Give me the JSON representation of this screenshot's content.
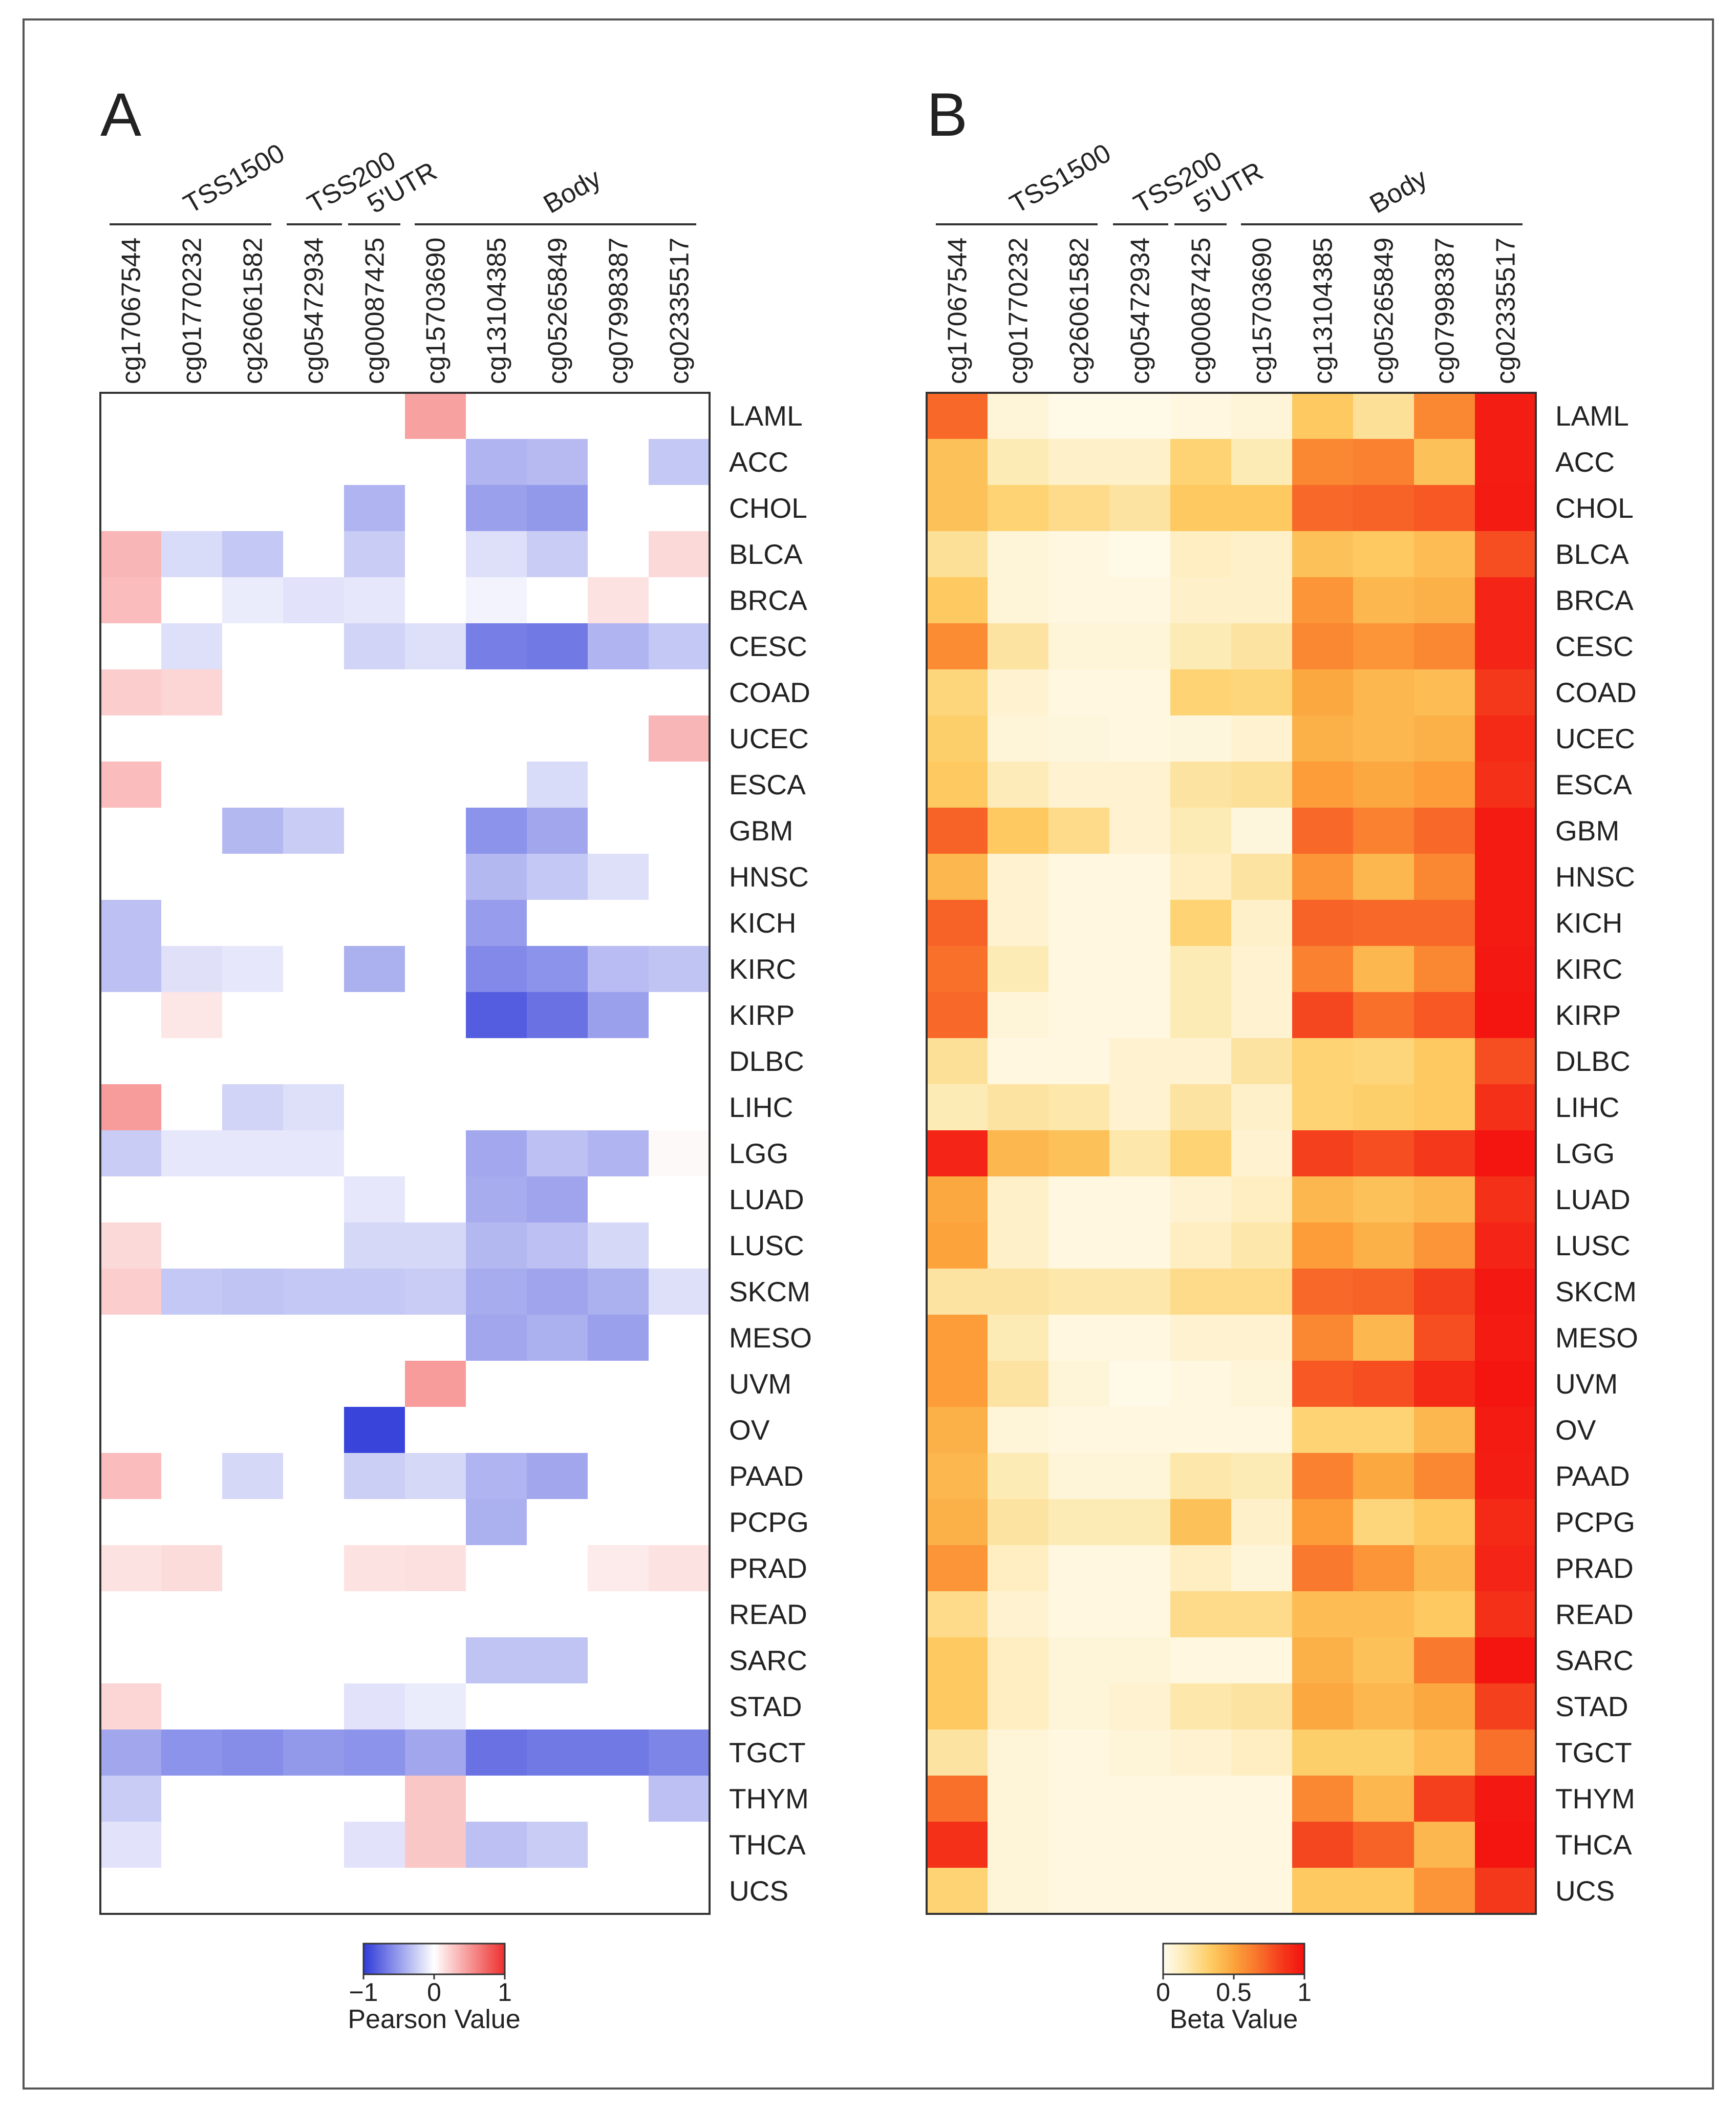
{
  "chart_data": [
    {
      "panel": "A",
      "type": "heatmap",
      "value_name": "Pearson Value",
      "colorbar": {
        "min": -1,
        "max": 1,
        "ticks": [
          "−1",
          "0",
          "1"
        ],
        "label": "Pearson Value",
        "colors": {
          "low": "#2e3ad8",
          "mid": "#ffffff",
          "high": "#ee2e2e"
        }
      },
      "group_headers": [
        "TSS1500",
        "TSS200",
        "5'UTR",
        "Body"
      ],
      "groups": [
        {
          "name": "TSS1500",
          "start": 0,
          "end": 2
        },
        {
          "name": "TSS200",
          "start": 3,
          "end": 3
        },
        {
          "name": "5'UTR",
          "start": 4,
          "end": 4
        },
        {
          "name": "Body",
          "start": 5,
          "end": 9
        }
      ],
      "columns": [
        "cg17067544",
        "cg01770232",
        "cg26061582",
        "cg05472934",
        "cg00087425",
        "cg15703690",
        "cg13104385",
        "cg05265849",
        "cg07998387",
        "cg02335517"
      ],
      "rows": [
        "LAML",
        "ACC",
        "CHOL",
        "BLCA",
        "BRCA",
        "CESC",
        "COAD",
        "UCEC",
        "ESCA",
        "GBM",
        "HNSC",
        "KICH",
        "KIRC",
        "KIRP",
        "DLBC",
        "LIHC",
        "LGG",
        "LUAD",
        "LUSC",
        "SKCM",
        "MESO",
        "UVM",
        "OV",
        "PAAD",
        "PCPG",
        "PRAD",
        "READ",
        "SARC",
        "STAD",
        "TGCT",
        "THYM",
        "THCA",
        "UCS"
      ],
      "values": [
        [
          0,
          0,
          0,
          0,
          0,
          0.45,
          0,
          0,
          0,
          0
        ],
        [
          0,
          0,
          0,
          0,
          0,
          0,
          -0.38,
          -0.35,
          0,
          -0.28
        ],
        [
          0,
          0,
          0,
          0,
          -0.38,
          0,
          -0.48,
          -0.52,
          0,
          0
        ],
        [
          0.35,
          -0.18,
          -0.28,
          0,
          -0.26,
          0,
          -0.16,
          -0.26,
          0,
          0.18
        ],
        [
          0.32,
          0,
          -0.1,
          -0.14,
          -0.12,
          0,
          -0.06,
          0,
          0.14,
          0
        ],
        [
          0,
          -0.16,
          0,
          0,
          -0.22,
          -0.16,
          -0.65,
          -0.68,
          -0.38,
          -0.28
        ],
        [
          0.24,
          0.2,
          0,
          0,
          0,
          0,
          0,
          0,
          0,
          0
        ],
        [
          0,
          0,
          0,
          0,
          0,
          0,
          0,
          0,
          0,
          0.35
        ],
        [
          0.32,
          0,
          0,
          0,
          0,
          0,
          0,
          -0.18,
          0,
          0
        ],
        [
          0,
          0,
          -0.36,
          -0.26,
          0,
          0,
          -0.55,
          -0.45,
          0,
          0
        ],
        [
          0,
          0,
          0,
          0,
          0,
          0,
          -0.36,
          -0.28,
          -0.16,
          0
        ],
        [
          -0.32,
          0,
          0,
          0,
          0,
          0,
          -0.5,
          0,
          0,
          0
        ],
        [
          -0.32,
          -0.15,
          -0.12,
          0,
          -0.4,
          0,
          -0.6,
          -0.55,
          -0.34,
          -0.3
        ],
        [
          0,
          0.12,
          0,
          0,
          0,
          0,
          -0.82,
          -0.72,
          -0.48,
          0
        ],
        [
          0,
          0,
          0,
          0,
          0,
          0,
          0,
          0,
          0,
          0
        ],
        [
          0.48,
          0,
          -0.22,
          -0.16,
          0,
          0,
          0,
          0,
          0,
          0
        ],
        [
          -0.26,
          -0.12,
          -0.12,
          -0.12,
          0,
          0,
          -0.44,
          -0.32,
          -0.38,
          0.03
        ],
        [
          0,
          0,
          0,
          0,
          -0.12,
          0,
          -0.42,
          -0.46,
          0,
          0
        ],
        [
          0.18,
          0,
          0,
          0,
          -0.2,
          -0.2,
          -0.36,
          -0.32,
          -0.2,
          0
        ],
        [
          0.24,
          -0.28,
          -0.3,
          -0.28,
          -0.28,
          -0.26,
          -0.42,
          -0.46,
          -0.4,
          -0.16
        ],
        [
          0,
          0,
          0,
          0,
          0,
          0,
          -0.45,
          -0.4,
          -0.48,
          0
        ],
        [
          0,
          0,
          0,
          0,
          0,
          0.48,
          0,
          0,
          0,
          0
        ],
        [
          0,
          0,
          0,
          0,
          -0.95,
          0,
          0,
          0,
          0,
          0
        ],
        [
          0.32,
          0,
          -0.2,
          0,
          -0.25,
          -0.2,
          -0.38,
          -0.45,
          0,
          0
        ],
        [
          0,
          0,
          0,
          0,
          0,
          0,
          -0.4,
          0,
          0,
          0
        ],
        [
          0.14,
          0.17,
          0,
          0,
          0.14,
          0.15,
          0,
          0,
          0.1,
          0.14
        ],
        [
          0,
          0,
          0,
          0,
          0,
          0,
          0,
          0,
          0,
          0
        ],
        [
          0,
          0,
          0,
          0,
          0,
          0,
          -0.3,
          -0.3,
          0,
          0
        ],
        [
          0.2,
          0,
          0,
          0,
          -0.14,
          -0.1,
          0,
          0,
          0,
          0
        ],
        [
          -0.45,
          -0.55,
          -0.58,
          -0.52,
          -0.55,
          -0.45,
          -0.72,
          -0.68,
          -0.68,
          -0.62
        ],
        [
          -0.26,
          0,
          0,
          0,
          0,
          0.27,
          0,
          0,
          0,
          -0.32
        ],
        [
          -0.14,
          0,
          0,
          0,
          -0.14,
          0.27,
          -0.32,
          -0.26,
          0,
          0
        ],
        [
          0,
          0,
          0,
          0,
          0,
          0,
          0,
          0,
          0,
          0
        ]
      ]
    },
    {
      "panel": "B",
      "type": "heatmap",
      "value_name": "Beta Value",
      "colorbar": {
        "min": 0,
        "max": 1,
        "ticks": [
          "0",
          "0.5",
          "1"
        ],
        "label": "Beta Value",
        "colors": {
          "stops": [
            "#fffbef",
            "#fde9b0",
            "#fdcd64",
            "#fca33c",
            "#f9742c",
            "#f43c1c",
            "#f41010"
          ]
        }
      },
      "group_headers": [
        "TSS1500",
        "TSS200",
        "5'UTR",
        "Body"
      ],
      "groups": [
        {
          "name": "TSS1500",
          "start": 0,
          "end": 2
        },
        {
          "name": "TSS200",
          "start": 3,
          "end": 3
        },
        {
          "name": "5'UTR",
          "start": 4,
          "end": 4
        },
        {
          "name": "Body",
          "start": 5,
          "end": 9
        }
      ],
      "columns": [
        "cg17067544",
        "cg01770232",
        "cg26061582",
        "cg05472934",
        "cg00087425",
        "cg15703690",
        "cg13104385",
        "cg05265849",
        "cg07998387",
        "cg02335517"
      ],
      "rows": [
        "LAML",
        "ACC",
        "CHOL",
        "BLCA",
        "BRCA",
        "CESC",
        "COAD",
        "UCEC",
        "ESCA",
        "GBM",
        "HNSC",
        "KICH",
        "KIRC",
        "KIRP",
        "DLBC",
        "LIHC",
        "LGG",
        "LUAD",
        "LUSC",
        "SKCM",
        "MESO",
        "UVM",
        "OV",
        "PAAD",
        "PCPG",
        "PRAD",
        "READ",
        "SARC",
        "STAD",
        "TGCT",
        "THYM",
        "THCA",
        "UCS"
      ],
      "values": [
        [
          0.7,
          0.06,
          0.02,
          0.02,
          0.04,
          0.06,
          0.35,
          0.22,
          0.6,
          0.95
        ],
        [
          0.38,
          0.15,
          0.1,
          0.1,
          0.3,
          0.15,
          0.6,
          0.62,
          0.38,
          0.95
        ],
        [
          0.38,
          0.3,
          0.25,
          0.2,
          0.35,
          0.35,
          0.7,
          0.72,
          0.75,
          0.96
        ],
        [
          0.22,
          0.06,
          0.04,
          0.02,
          0.12,
          0.1,
          0.38,
          0.35,
          0.4,
          0.78
        ],
        [
          0.35,
          0.06,
          0.04,
          0.04,
          0.1,
          0.1,
          0.55,
          0.42,
          0.45,
          0.92
        ],
        [
          0.58,
          0.2,
          0.06,
          0.06,
          0.15,
          0.2,
          0.6,
          0.55,
          0.6,
          0.92
        ],
        [
          0.28,
          0.08,
          0.04,
          0.04,
          0.3,
          0.28,
          0.48,
          0.42,
          0.4,
          0.85
        ],
        [
          0.32,
          0.06,
          0.05,
          0.04,
          0.05,
          0.08,
          0.45,
          0.42,
          0.45,
          0.9
        ],
        [
          0.35,
          0.14,
          0.08,
          0.08,
          0.2,
          0.22,
          0.52,
          0.48,
          0.52,
          0.88
        ],
        [
          0.72,
          0.35,
          0.25,
          0.08,
          0.15,
          0.05,
          0.7,
          0.62,
          0.7,
          0.96
        ],
        [
          0.42,
          0.08,
          0.04,
          0.04,
          0.12,
          0.2,
          0.55,
          0.42,
          0.6,
          0.96
        ],
        [
          0.72,
          0.08,
          0.04,
          0.04,
          0.3,
          0.1,
          0.72,
          0.7,
          0.7,
          0.96
        ],
        [
          0.68,
          0.15,
          0.04,
          0.04,
          0.15,
          0.08,
          0.62,
          0.42,
          0.6,
          0.97
        ],
        [
          0.7,
          0.06,
          0.04,
          0.04,
          0.15,
          0.08,
          0.8,
          0.68,
          0.75,
          0.98
        ],
        [
          0.22,
          0.04,
          0.04,
          0.08,
          0.08,
          0.2,
          0.3,
          0.28,
          0.35,
          0.78
        ],
        [
          0.15,
          0.2,
          0.18,
          0.08,
          0.2,
          0.1,
          0.3,
          0.32,
          0.35,
          0.88
        ],
        [
          0.92,
          0.42,
          0.38,
          0.18,
          0.3,
          0.08,
          0.82,
          0.78,
          0.85,
          0.98
        ],
        [
          0.48,
          0.1,
          0.04,
          0.04,
          0.08,
          0.12,
          0.42,
          0.38,
          0.42,
          0.88
        ],
        [
          0.5,
          0.1,
          0.04,
          0.04,
          0.12,
          0.18,
          0.52,
          0.45,
          0.55,
          0.92
        ],
        [
          0.2,
          0.2,
          0.18,
          0.18,
          0.25,
          0.25,
          0.7,
          0.72,
          0.82,
          0.97
        ],
        [
          0.52,
          0.15,
          0.04,
          0.04,
          0.08,
          0.08,
          0.6,
          0.42,
          0.78,
          0.96
        ],
        [
          0.52,
          0.2,
          0.06,
          0.02,
          0.04,
          0.06,
          0.75,
          0.78,
          0.9,
          0.98
        ],
        [
          0.45,
          0.06,
          0.04,
          0.04,
          0.04,
          0.04,
          0.3,
          0.3,
          0.42,
          0.96
        ],
        [
          0.42,
          0.15,
          0.06,
          0.06,
          0.18,
          0.15,
          0.62,
          0.48,
          0.6,
          0.95
        ],
        [
          0.45,
          0.2,
          0.15,
          0.15,
          0.38,
          0.1,
          0.52,
          0.28,
          0.35,
          0.9
        ],
        [
          0.55,
          0.12,
          0.04,
          0.04,
          0.12,
          0.06,
          0.65,
          0.55,
          0.42,
          0.92
        ],
        [
          0.25,
          0.08,
          0.04,
          0.04,
          0.25,
          0.25,
          0.4,
          0.4,
          0.35,
          0.88
        ],
        [
          0.35,
          0.12,
          0.06,
          0.06,
          0.04,
          0.04,
          0.45,
          0.38,
          0.65,
          0.98
        ],
        [
          0.35,
          0.12,
          0.06,
          0.08,
          0.18,
          0.2,
          0.48,
          0.42,
          0.48,
          0.82
        ],
        [
          0.2,
          0.06,
          0.04,
          0.06,
          0.08,
          0.12,
          0.32,
          0.32,
          0.4,
          0.68
        ],
        [
          0.68,
          0.06,
          0.04,
          0.04,
          0.04,
          0.04,
          0.6,
          0.42,
          0.82,
          0.97
        ],
        [
          0.88,
          0.06,
          0.04,
          0.04,
          0.04,
          0.04,
          0.8,
          0.72,
          0.42,
          0.98
        ],
        [
          0.3,
          0.06,
          0.04,
          0.04,
          0.04,
          0.04,
          0.35,
          0.35,
          0.55,
          0.85
        ]
      ]
    }
  ]
}
